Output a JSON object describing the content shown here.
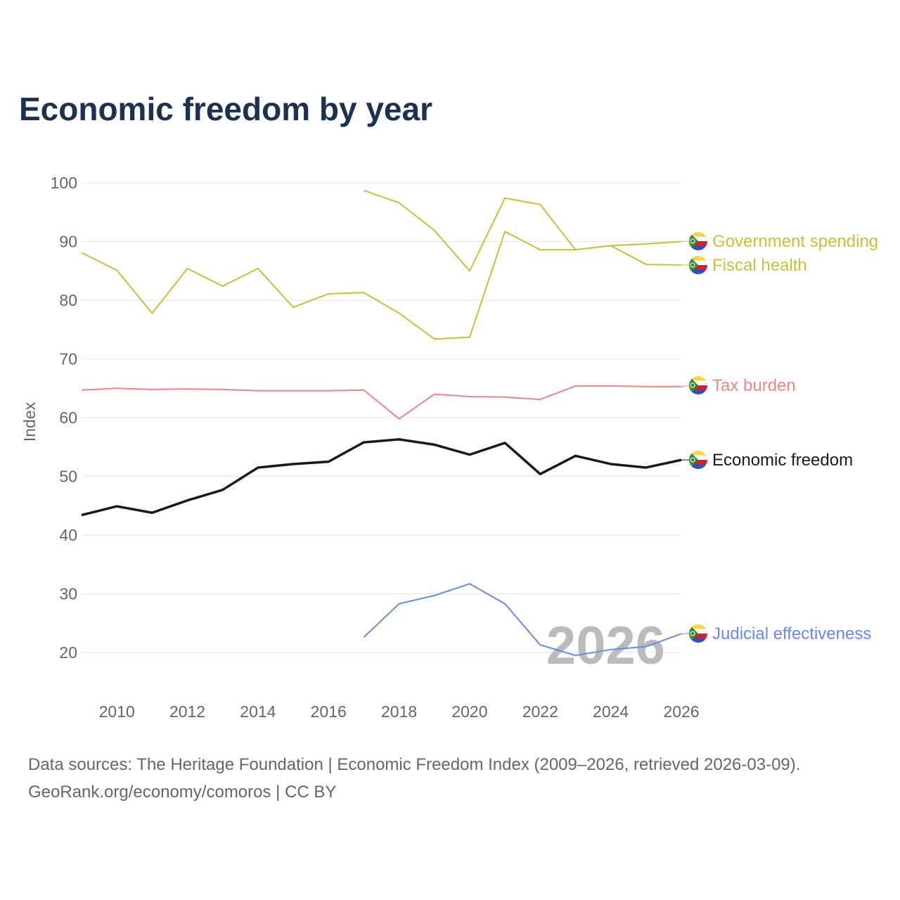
{
  "chart_data": {
    "type": "line",
    "title": "Economic freedom by year",
    "xlabel": "",
    "ylabel": "Index",
    "xlim": [
      2009,
      2026
    ],
    "ylim": [
      15,
      100
    ],
    "yticks": [
      20,
      30,
      40,
      50,
      60,
      70,
      80,
      90,
      100
    ],
    "xticks": [
      2010,
      2012,
      2014,
      2016,
      2018,
      2020,
      2022,
      2024,
      2026
    ],
    "grid": true,
    "legend": "right, end-of-line labels",
    "watermark_year": "2026",
    "series": [
      {
        "name": "Government spending",
        "color": "#c8c03c",
        "width": 2,
        "x": [
          2009,
          2010,
          2011,
          2012,
          2013,
          2014,
          2015,
          2016,
          2017,
          2018,
          2019,
          2020,
          2021,
          2022,
          2023,
          2024,
          2025,
          2026
        ],
        "values": [
          88.1,
          85.1,
          77.8,
          85.4,
          82.4,
          85.4,
          78.8,
          81.1,
          81.3,
          77.8,
          73.4,
          73.7,
          91.7,
          88.6,
          88.6,
          89.3,
          89.6,
          90.0
        ]
      },
      {
        "name": "Fiscal health",
        "color": "#c8c03c",
        "width": 2,
        "x": [
          2017,
          2018,
          2019,
          2020,
          2021,
          2022,
          2023,
          2024,
          2025,
          2026
        ],
        "values": [
          98.7,
          96.6,
          91.9,
          85.0,
          97.4,
          96.3,
          88.6,
          89.3,
          86.1,
          86.0
        ]
      },
      {
        "name": "Tax burden",
        "color": "#e88888",
        "width": 2,
        "x": [
          2009,
          2010,
          2011,
          2012,
          2013,
          2014,
          2015,
          2016,
          2017,
          2018,
          2019,
          2020,
          2021,
          2022,
          2023,
          2024,
          2025,
          2026
        ],
        "values": [
          64.7,
          65.0,
          64.8,
          64.9,
          64.8,
          64.6,
          64.6,
          64.6,
          64.7,
          59.8,
          64.0,
          63.6,
          63.5,
          63.1,
          65.4,
          65.4,
          65.3,
          65.3
        ]
      },
      {
        "name": "Economic freedom",
        "color": "#1a1a1a",
        "width": 3.5,
        "x": [
          2009,
          2010,
          2011,
          2012,
          2013,
          2014,
          2015,
          2016,
          2017,
          2018,
          2019,
          2020,
          2021,
          2022,
          2023,
          2024,
          2025,
          2026
        ],
        "values": [
          43.4,
          44.9,
          43.8,
          45.9,
          47.7,
          51.5,
          52.1,
          52.5,
          55.8,
          56.3,
          55.4,
          53.7,
          55.7,
          50.4,
          53.5,
          52.1,
          51.5,
          52.8
        ]
      },
      {
        "name": "Judicial effectiveness",
        "color": "#6a88e8",
        "width": 2,
        "x": [
          2017,
          2018,
          2019,
          2020,
          2021,
          2022,
          2023,
          2024,
          2025,
          2026
        ],
        "values": [
          22.6,
          28.3,
          29.7,
          31.7,
          28.3,
          21.3,
          19.5,
          20.5,
          21.0,
          23.2
        ]
      }
    ]
  },
  "source_line1": "Data sources: The Heritage Foundation | Economic Freedom Index (2009–2026, retrieved 2026-03-09).",
  "source_line2": "GeoRank.org/economy/comoros | CC BY"
}
